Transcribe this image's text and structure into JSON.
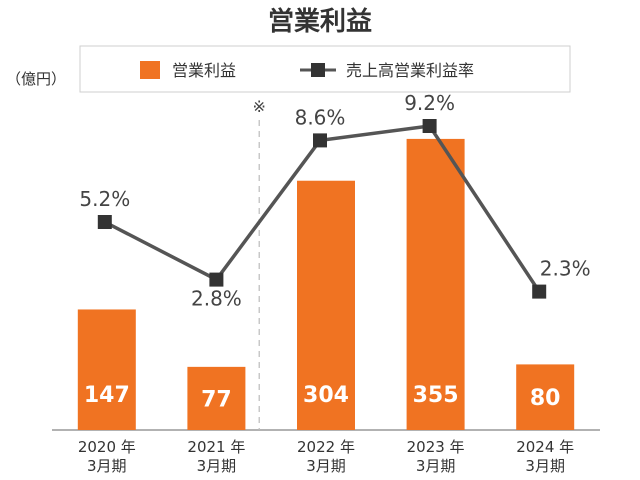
{
  "chart_data": {
    "type": "bar",
    "title": "営業利益",
    "unit_label": "（億円）",
    "note_mark": "※",
    "categories": [
      [
        "2020 年",
        "3月期"
      ],
      [
        "2021 年",
        "3月期"
      ],
      [
        "2022 年",
        "3月期"
      ],
      [
        "2023 年",
        "3月期"
      ],
      [
        "2024 年",
        "3月期"
      ]
    ],
    "series": [
      {
        "name": "営業利益",
        "kind": "bar",
        "color": "#F07322",
        "values": [
          147,
          77,
          304,
          355,
          80
        ],
        "labels": [
          "147",
          "77",
          "304",
          "355",
          "80"
        ]
      },
      {
        "name": "売上高営業利益率",
        "kind": "line",
        "color": "#555555",
        "marker_color": "#333333",
        "values": [
          5.2,
          2.8,
          8.6,
          9.2,
          2.3
        ],
        "labels": [
          "5.2%",
          "2.8%",
          "8.6%",
          "9.2%",
          "2.3%"
        ]
      }
    ],
    "legend_position": "top"
  }
}
